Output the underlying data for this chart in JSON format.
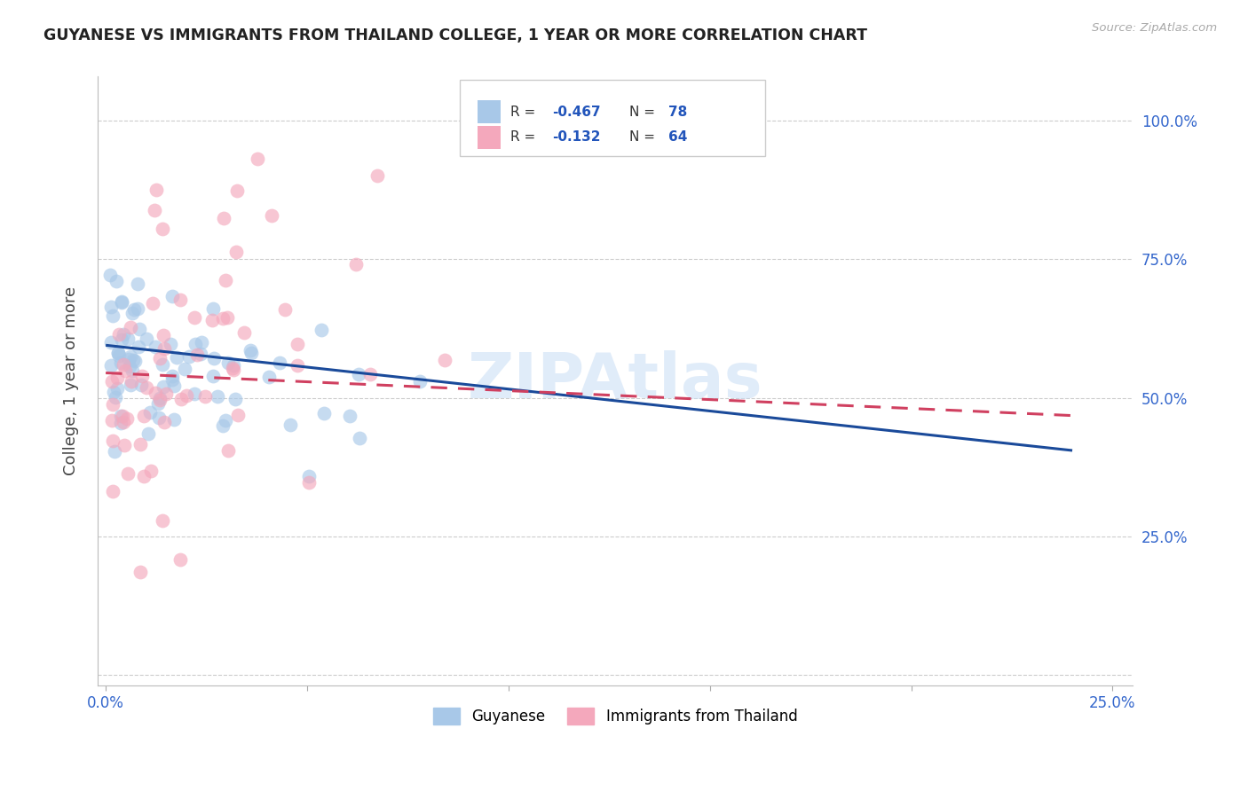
{
  "title": "GUYANESE VS IMMIGRANTS FROM THAILAND COLLEGE, 1 YEAR OR MORE CORRELATION CHART",
  "source": "Source: ZipAtlas.com",
  "ylabel": "College, 1 year or more",
  "xlim": [
    -0.002,
    0.255
  ],
  "ylim": [
    -0.02,
    1.08
  ],
  "yticks": [
    0.0,
    0.25,
    0.5,
    0.75,
    1.0
  ],
  "ytick_labels": [
    "",
    "25.0%",
    "50.0%",
    "75.0%",
    "100.0%"
  ],
  "xticks": [
    0.0,
    0.05,
    0.1,
    0.15,
    0.2,
    0.25
  ],
  "xtick_labels": [
    "0.0%",
    "",
    "",
    "",
    "",
    "25.0%"
  ],
  "legend_labels": [
    "Guyanese",
    "Immigrants from Thailand"
  ],
  "blue_R": -0.467,
  "blue_N": 78,
  "pink_R": -0.132,
  "pink_N": 64,
  "blue_color": "#a8c8e8",
  "pink_color": "#f4a8bc",
  "blue_line_color": "#1a4a9a",
  "pink_line_color": "#d04060",
  "watermark": "ZIPAtlas",
  "blue_seed": 42,
  "pink_seed": 99
}
